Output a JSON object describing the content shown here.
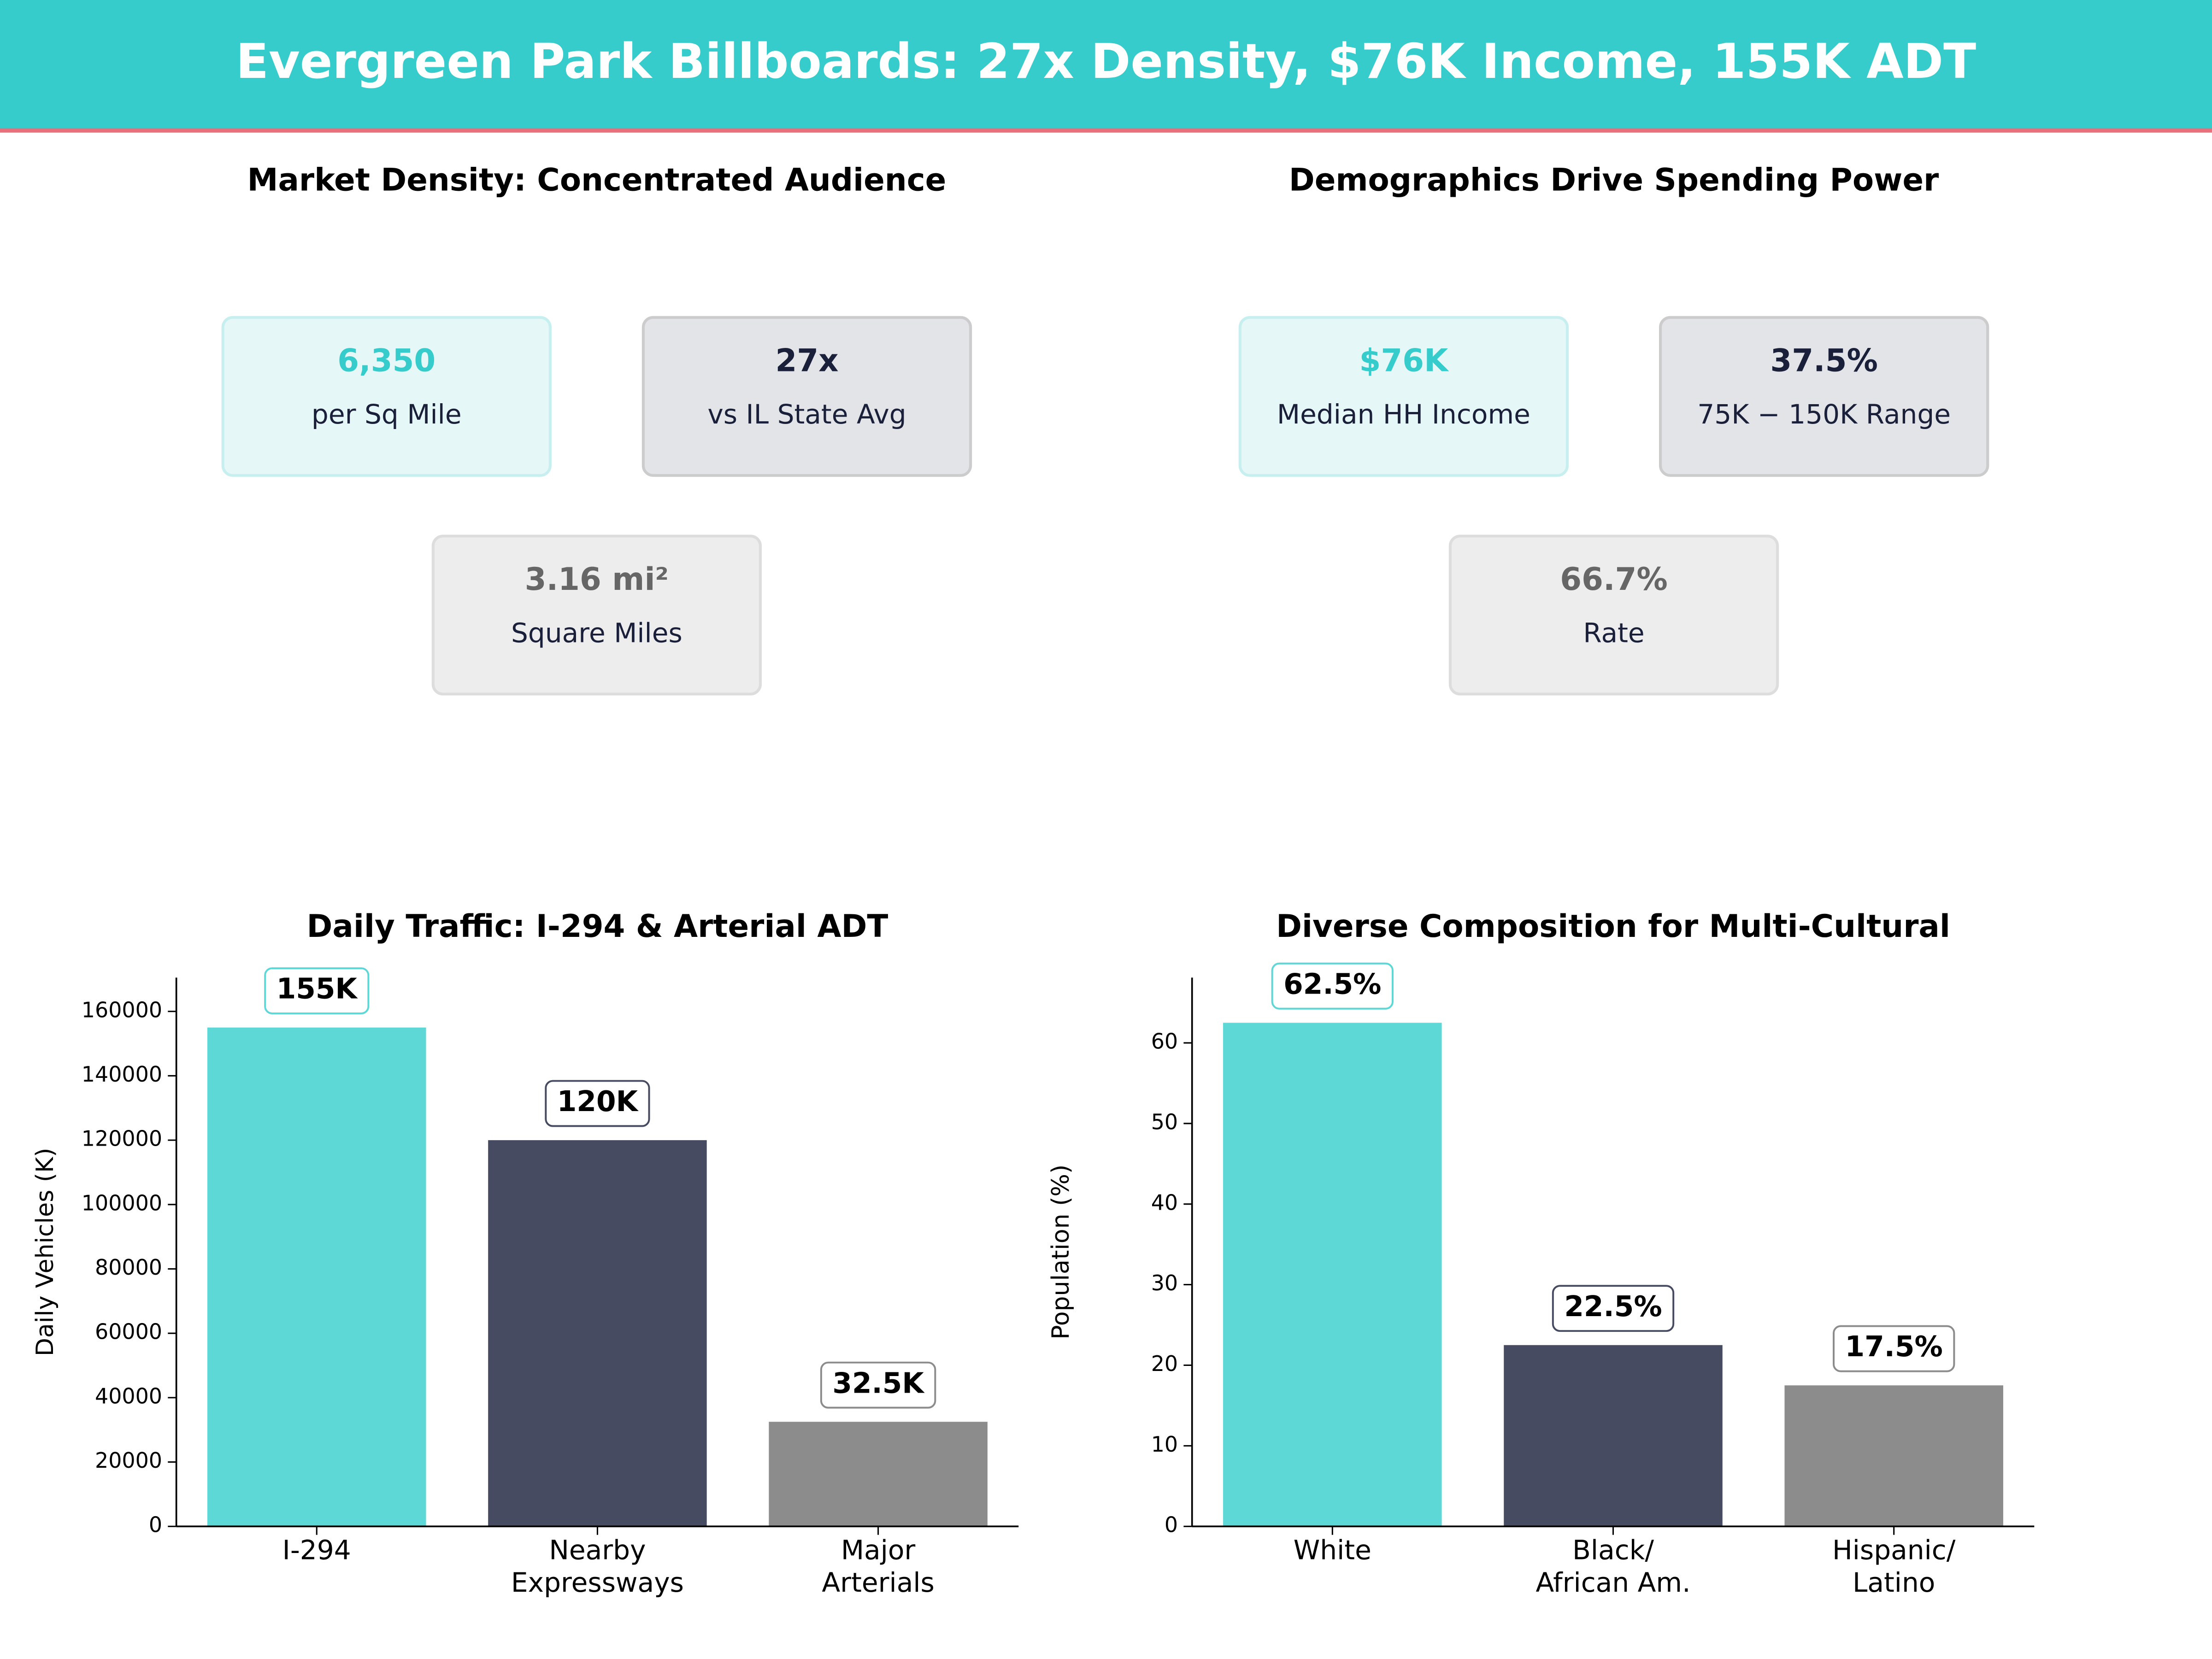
{
  "header": {
    "title": "Evergreen Park Billboards: 27x Density, $76K Income, 155K ADT"
  },
  "kpi_panels": [
    {
      "title": "Market Density: Concentrated Audience",
      "cards": [
        {
          "value": "6,350",
          "label": "per Sq Mile"
        },
        {
          "value": "27x",
          "label": "vs IL State Avg"
        },
        {
          "value": "3.16 mi²",
          "label": "Square Miles"
        }
      ]
    },
    {
      "title": "Demographics Drive Spending Power",
      "cards": [
        {
          "value": "$76K",
          "label": "Median HH Income"
        },
        {
          "value": "37.5%",
          "label": "75K − 150K Range"
        },
        {
          "value": "66.7%",
          "label": "Rate"
        }
      ]
    }
  ],
  "chart_data": [
    {
      "type": "bar",
      "title": "Daily Traffic: I-294 & Arterial ADT",
      "ylabel": "Daily Vehicles (K)",
      "categories": [
        [
          "I-294"
        ],
        [
          "Nearby",
          "Expressways"
        ],
        [
          "Major",
          "Arterials"
        ]
      ],
      "values": [
        155000,
        120000,
        32500
      ],
      "value_labels": [
        "155K",
        "120K",
        "32.5K"
      ],
      "colors": [
        "#5dd8d6",
        "#464b62",
        "#8c8c8c"
      ],
      "ylim": [
        0,
        170500
      ],
      "yticks": [
        0,
        20000,
        40000,
        60000,
        80000,
        100000,
        120000,
        140000,
        160000
      ]
    },
    {
      "type": "bar",
      "title": "Diverse Composition for Multi-Cultural",
      "ylabel": "Population (%)",
      "categories": [
        [
          "White"
        ],
        [
          "Black/",
          "African Am."
        ],
        [
          "Hispanic/",
          "Latino"
        ]
      ],
      "values": [
        62.5,
        22.5,
        17.5
      ],
      "value_labels": [
        "62.5%",
        "22.5%",
        "17.5%"
      ],
      "colors": [
        "#5dd8d6",
        "#464b62",
        "#8c8c8c"
      ],
      "ylim": [
        0,
        68.1
      ],
      "yticks": [
        0,
        10,
        20,
        30,
        40,
        50,
        60
      ]
    }
  ]
}
